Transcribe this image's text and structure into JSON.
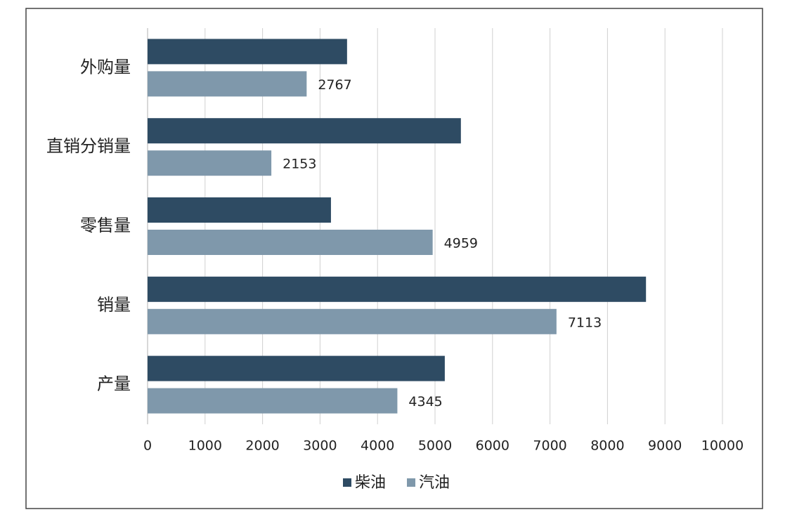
{
  "chart_data": {
    "type": "bar",
    "orientation": "horizontal",
    "categories": [
      "外购量",
      "直销分销量",
      "零售量",
      "销量",
      "产量"
    ],
    "series": [
      {
        "name": "柴油",
        "color": "#2e4b63",
        "values": [
          3470,
          5450,
          3190,
          8670,
          5170
        ],
        "data_labels": false
      },
      {
        "name": "汽油",
        "color": "#7f98ab",
        "values": [
          2767,
          2153,
          4959,
          7113,
          4345
        ],
        "data_labels": true
      }
    ],
    "xlim": [
      0,
      10000
    ],
    "xticks": [
      0,
      1000,
      2000,
      3000,
      4000,
      5000,
      6000,
      7000,
      8000,
      9000,
      10000
    ],
    "grid": true,
    "legend": "bottom"
  }
}
